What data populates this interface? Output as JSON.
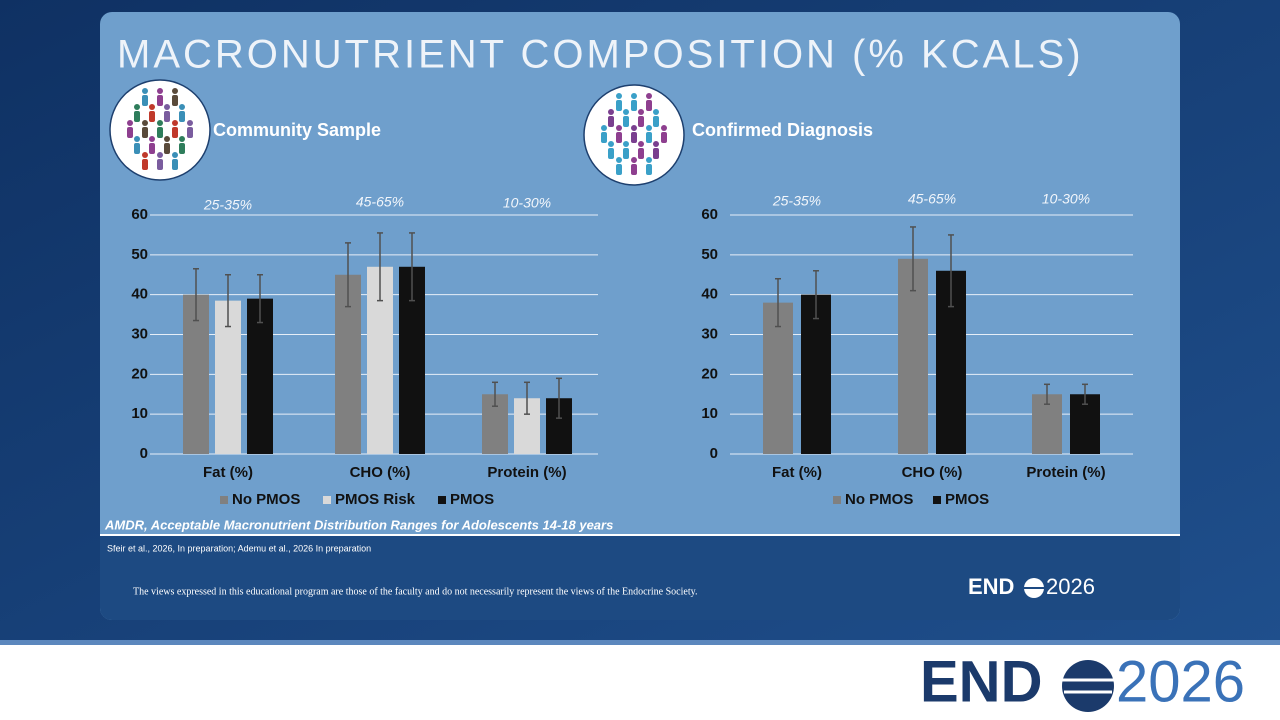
{
  "slide": {
    "title": "MACRONUTRIENT COMPOSITION (% KCALS)",
    "footnote": "AMDR, Acceptable Macronutrient Distribution Ranges for Adolescents 14-18 years",
    "citation": "Sfeir et al., 2026, In preparation; Ademu et al., 2026 In preparation",
    "disclaimer": "The views expressed in this educational program are those of the faculty and do not necessarily represent the views of the Endocrine Society.",
    "logo": {
      "left": "END",
      "right": "2026"
    }
  },
  "chart_data": [
    {
      "type": "bar",
      "title": "Community Sample",
      "categories": [
        "Fat (%)",
        "CHO (%)",
        "Protein (%)"
      ],
      "annotations": [
        "25-35%",
        "45-65%",
        "10-30%"
      ],
      "series": [
        {
          "name": "No PMOS",
          "color": "#808080",
          "values": [
            40,
            45,
            15
          ],
          "errors": [
            6.5,
            8,
            3
          ]
        },
        {
          "name": "PMOS Risk",
          "color": "#d9d9d9",
          "values": [
            38.5,
            47,
            14
          ],
          "errors": [
            6.5,
            8.5,
            4
          ]
        },
        {
          "name": "PMOS",
          "color": "#111111",
          "values": [
            39,
            47,
            14
          ],
          "errors": [
            6,
            8.5,
            5
          ]
        }
      ],
      "ylim": [
        0,
        60
      ],
      "yticks": [
        0,
        10,
        20,
        30,
        40,
        50,
        60
      ],
      "grid": true
    },
    {
      "type": "bar",
      "title": "Confirmed Diagnosis",
      "categories": [
        "Fat (%)",
        "CHO (%)",
        "Protein (%)"
      ],
      "annotations": [
        "25-35%",
        "45-65%",
        "10-30%"
      ],
      "series": [
        {
          "name": "No PMOS",
          "color": "#808080",
          "values": [
            38,
            49,
            15
          ],
          "errors": [
            6,
            8,
            2.5
          ]
        },
        {
          "name": "PMOS",
          "color": "#111111",
          "values": [
            40,
            46,
            15
          ],
          "errors": [
            6,
            9,
            2.5
          ]
        }
      ],
      "ylim": [
        0,
        60
      ],
      "yticks": [
        0,
        10,
        20,
        30,
        40,
        50,
        60
      ],
      "grid": true
    }
  ]
}
